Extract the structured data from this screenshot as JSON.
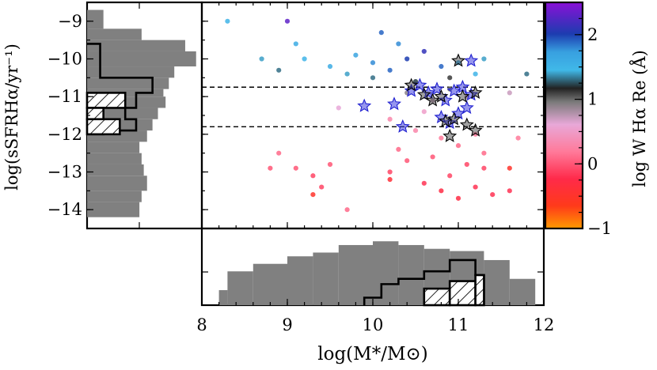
{
  "chart_data": {
    "type": "scatter",
    "title": "",
    "xlabel": "log(M*/M⊙)",
    "ylabel": "log(sSFRHα/yr⁻¹)",
    "colorbar_label": "log W Hα Re (Å)",
    "xlim": [
      8,
      12
    ],
    "ylim": [
      -14.5,
      -8.5
    ],
    "colorbar_range": [
      -1,
      2.5
    ],
    "x_ticks": [
      "8",
      "9",
      "10",
      "11",
      "12"
    ],
    "y_ticks": [
      "−9",
      "−10",
      "−11",
      "−12",
      "−13",
      "−14"
    ],
    "colorbar_ticks": [
      "−1",
      "0",
      "1",
      "2"
    ],
    "x_tick_values": [
      8,
      9,
      10,
      11,
      12
    ],
    "y_tick_values": [
      -9,
      -10,
      -11,
      -12,
      -13,
      -14
    ],
    "colorbar_tick_values": [
      -1,
      0,
      1,
      2
    ],
    "dashed_lines_y": [
      -10.75,
      -11.8
    ],
    "points": [
      {
        "x": 9.2,
        "y": -10.0,
        "c": 1.5
      },
      {
        "x": 9.5,
        "y": -10.2,
        "c": 1.6
      },
      {
        "x": 9.8,
        "y": -9.9,
        "c": 1.7
      },
      {
        "x": 10.0,
        "y": -10.1,
        "c": 1.8
      },
      {
        "x": 10.2,
        "y": -10.3,
        "c": 1.9
      },
      {
        "x": 10.4,
        "y": -10.0,
        "c": 2.0
      },
      {
        "x": 10.6,
        "y": -9.8,
        "c": 2.1
      },
      {
        "x": 10.8,
        "y": -10.2,
        "c": 1.9
      },
      {
        "x": 11.0,
        "y": -10.1,
        "c": 1.7
      },
      {
        "x": 11.2,
        "y": -10.4,
        "c": 1.5
      },
      {
        "x": 8.7,
        "y": -10.0,
        "c": 1.4
      },
      {
        "x": 8.9,
        "y": -10.3,
        "c": 1.3
      },
      {
        "x": 9.1,
        "y": -9.6,
        "c": 1.6
      },
      {
        "x": 9.7,
        "y": -10.4,
        "c": 1.4
      },
      {
        "x": 10.3,
        "y": -9.6,
        "c": 1.8
      },
      {
        "x": 10.5,
        "y": -10.6,
        "c": 1.2
      },
      {
        "x": 10.9,
        "y": -10.5,
        "c": 1.1
      },
      {
        "x": 11.3,
        "y": -10.0,
        "c": 1.4
      },
      {
        "x": 9.0,
        "y": -9.0,
        "c": 2.3
      },
      {
        "x": 10.1,
        "y": -9.3,
        "c": 1.9
      },
      {
        "x": 8.3,
        "y": -9.0,
        "c": 1.5
      },
      {
        "x": 10.4,
        "y": -10.9,
        "c": 0.9
      },
      {
        "x": 10.7,
        "y": -11.1,
        "c": 0.8
      },
      {
        "x": 10.9,
        "y": -10.8,
        "c": 1.0
      },
      {
        "x": 11.1,
        "y": -11.0,
        "c": 0.8
      },
      {
        "x": 10.6,
        "y": -11.4,
        "c": 0.5
      },
      {
        "x": 9.6,
        "y": -11.3,
        "c": 0.6
      },
      {
        "x": 10.2,
        "y": -11.6,
        "c": 0.3
      },
      {
        "x": 10.5,
        "y": -11.9,
        "c": 0.3
      },
      {
        "x": 10.8,
        "y": -12.1,
        "c": 0.2
      },
      {
        "x": 11.0,
        "y": -12.3,
        "c": 0.1
      },
      {
        "x": 11.2,
        "y": -12.0,
        "c": 0.2
      },
      {
        "x": 10.3,
        "y": -12.4,
        "c": 0.1
      },
      {
        "x": 10.7,
        "y": -12.6,
        "c": 0.0
      },
      {
        "x": 11.1,
        "y": -12.8,
        "c": -0.1
      },
      {
        "x": 11.3,
        "y": -12.5,
        "c": 0.1
      },
      {
        "x": 9.1,
        "y": -12.9,
        "c": 0.0
      },
      {
        "x": 9.3,
        "y": -13.1,
        "c": -0.1
      },
      {
        "x": 9.4,
        "y": -13.4,
        "c": -0.1
      },
      {
        "x": 9.5,
        "y": -12.8,
        "c": 0.0
      },
      {
        "x": 8.8,
        "y": -12.9,
        "c": 0.0
      },
      {
        "x": 10.2,
        "y": -13.0,
        "c": -0.1
      },
      {
        "x": 10.6,
        "y": -13.3,
        "c": -0.2
      },
      {
        "x": 10.8,
        "y": -13.5,
        "c": -0.3
      },
      {
        "x": 11.0,
        "y": -13.7,
        "c": -0.3
      },
      {
        "x": 11.2,
        "y": -13.4,
        "c": -0.2
      },
      {
        "x": 11.4,
        "y": -13.6,
        "c": -0.2
      },
      {
        "x": 11.6,
        "y": -13.5,
        "c": -0.2
      },
      {
        "x": 10.9,
        "y": -13.1,
        "c": -0.1
      },
      {
        "x": 11.3,
        "y": -12.9,
        "c": -0.1
      },
      {
        "x": 10.4,
        "y": -12.7,
        "c": 0.0
      },
      {
        "x": 11.7,
        "y": -12.1,
        "c": 0.2
      },
      {
        "x": 10.2,
        "y": -13.2,
        "c": -0.4
      },
      {
        "x": 11.6,
        "y": -12.9,
        "c": -0.5
      },
      {
        "x": 9.3,
        "y": -13.6,
        "c": -0.5
      },
      {
        "x": 8.9,
        "y": -12.5,
        "c": 0.1
      },
      {
        "x": 9.7,
        "y": -14.0,
        "c": 0.1
      },
      {
        "x": 11.8,
        "y": -10.4,
        "c": 1.3
      },
      {
        "x": 11.6,
        "y": -10.9,
        "c": 0.7
      },
      {
        "x": 10.0,
        "y": -10.5,
        "c": 1.3
      }
    ],
    "series": [
      {
        "name": "blue-stars",
        "points": [
          {
            "x": 9.9,
            "y": -11.25
          },
          {
            "x": 10.25,
            "y": -11.2
          },
          {
            "x": 10.35,
            "y": -11.8
          },
          {
            "x": 10.45,
            "y": -10.85
          },
          {
            "x": 10.55,
            "y": -10.7
          },
          {
            "x": 10.65,
            "y": -10.9
          },
          {
            "x": 10.75,
            "y": -10.8
          },
          {
            "x": 10.8,
            "y": -11.55
          },
          {
            "x": 10.85,
            "y": -11.1
          },
          {
            "x": 10.9,
            "y": -11.7
          },
          {
            "x": 10.95,
            "y": -10.85
          },
          {
            "x": 11.0,
            "y": -11.45
          },
          {
            "x": 11.05,
            "y": -10.75
          },
          {
            "x": 11.1,
            "y": -11.3
          },
          {
            "x": 11.15,
            "y": -10.95
          },
          {
            "x": 11.15,
            "y": -10.05
          }
        ]
      },
      {
        "name": "black-stars",
        "points": [
          {
            "x": 10.45,
            "y": -10.7
          },
          {
            "x": 10.6,
            "y": -10.95
          },
          {
            "x": 10.7,
            "y": -11.1
          },
          {
            "x": 10.8,
            "y": -11.0
          },
          {
            "x": 10.85,
            "y": -11.65
          },
          {
            "x": 10.9,
            "y": -12.05
          },
          {
            "x": 10.95,
            "y": -11.6
          },
          {
            "x": 11.0,
            "y": -10.05
          },
          {
            "x": 11.05,
            "y": -11.0
          },
          {
            "x": 11.1,
            "y": -11.75
          },
          {
            "x": 11.2,
            "y": -10.9
          },
          {
            "x": 11.2,
            "y": -11.9
          }
        ]
      }
    ],
    "top_hist": {
      "edges": [
        8.2,
        8.3,
        8.6,
        9.0,
        9.3,
        9.6,
        10.0,
        10.3,
        10.6,
        10.9,
        11.3,
        11.6,
        11.9
      ],
      "counts": [
        0.2,
        0.45,
        0.55,
        0.65,
        0.7,
        0.8,
        0.85,
        0.8,
        0.75,
        0.72,
        0.6,
        0.35
      ]
    },
    "top_outline": {
      "edges": [
        9.9,
        10.1,
        10.3,
        10.6,
        10.9,
        11.2,
        11.3
      ],
      "counts": [
        0.1,
        0.28,
        0.35,
        0.45,
        0.6,
        0.4
      ]
    },
    "top_hatched": {
      "edges": [
        10.6,
        10.9,
        11.2,
        11.3
      ],
      "counts": [
        0.22,
        0.32,
        0.4
      ]
    },
    "left_hist": {
      "edges": [
        -8.7,
        -9.2,
        -9.5,
        -9.8,
        -10.2,
        -10.5,
        -10.8,
        -11.0,
        -11.3,
        -11.6,
        -11.9,
        -12.2,
        -12.5,
        -12.8,
        -13.1,
        -13.5,
        -13.8,
        -14.2
      ],
      "counts": [
        0.15,
        0.5,
        0.9,
        1.0,
        0.8,
        0.75,
        0.7,
        0.72,
        0.65,
        0.6,
        0.55,
        0.48,
        0.5,
        0.52,
        0.55,
        0.5,
        0.48
      ]
    },
    "left_outline": {
      "edges": [
        -9.6,
        -10.5,
        -10.9,
        -11.3,
        -11.6,
        -11.9,
        -12.0
      ],
      "counts": [
        0.12,
        0.6,
        0.45,
        0.35,
        0.45,
        0.15
      ]
    },
    "left_hatched": {
      "edges": [
        -10.9,
        -11.3,
        -11.6,
        -12.0
      ],
      "counts": [
        0.35,
        0.15,
        0.3
      ]
    }
  }
}
